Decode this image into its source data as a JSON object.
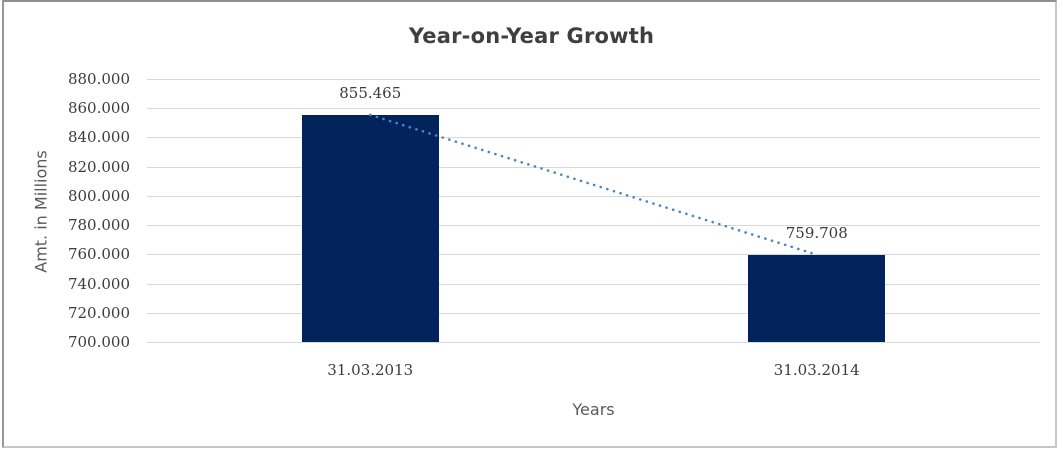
{
  "chart_data": {
    "type": "bar",
    "title": "Year-on-Year Growth",
    "xlabel": "Years",
    "ylabel": "Amt. in Millions",
    "categories": [
      "31.03.2013",
      "31.03.2014"
    ],
    "values": [
      855.465,
      759.708
    ],
    "value_labels": [
      "855.465",
      "759.708"
    ],
    "ylim": [
      700,
      880
    ],
    "ytick_step": 20,
    "ytick_labels": [
      "880.000",
      "860.000",
      "840.000",
      "820.000",
      "800.000",
      "780.000",
      "760.000",
      "740.000",
      "720.000",
      "700.000"
    ],
    "grid": true,
    "legend": "none",
    "trendline": {
      "style": "dotted",
      "connects": "bar tops",
      "color": "#4a86c8"
    },
    "colors": {
      "bar": "#02235c",
      "gridline": "#d9d9d9",
      "title": "#3f3f3f",
      "tick_label": "#3b3b3b",
      "axis_title": "#595959",
      "trendline": "#4a86c8",
      "frame_border": "#9a9a9a"
    }
  }
}
